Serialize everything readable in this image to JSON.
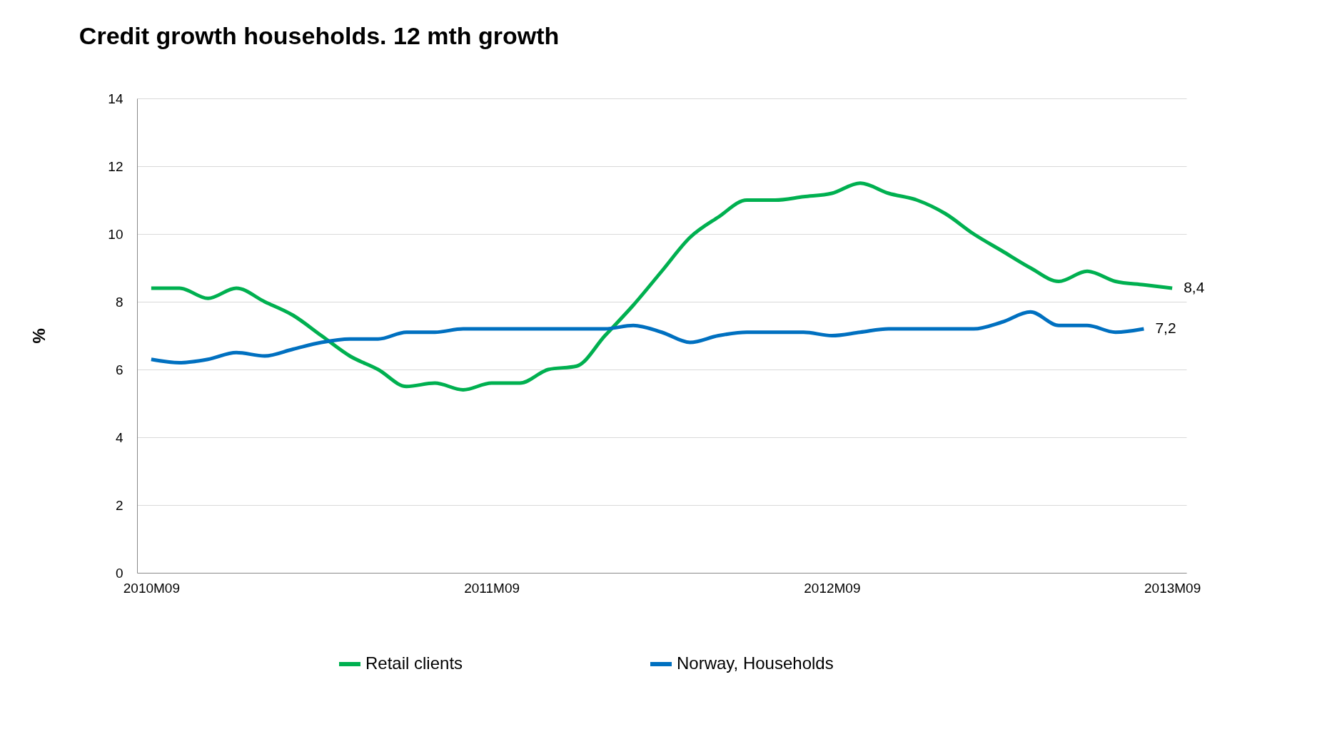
{
  "chart_data": {
    "type": "line",
    "title": "Credit growth households. 12 mth growth",
    "ylabel": "%",
    "categories": [
      "2010M09",
      null,
      null,
      null,
      null,
      null,
      null,
      null,
      null,
      null,
      null,
      null,
      "2011M09",
      null,
      null,
      null,
      null,
      null,
      null,
      null,
      null,
      null,
      null,
      null,
      "2012M09",
      null,
      null,
      null,
      null,
      null,
      null,
      null,
      null,
      null,
      null,
      null,
      "2013M09"
    ],
    "series": [
      {
        "name": "Retail clients",
        "color": "#00b050",
        "values": [
          8.4,
          8.4,
          8.1,
          8.4,
          8.0,
          7.6,
          7.0,
          6.4,
          6.0,
          5.5,
          5.6,
          5.4,
          5.6,
          5.6,
          6.0,
          6.1,
          7.0,
          7.9,
          8.9,
          9.9,
          10.5,
          11.0,
          11.0,
          11.1,
          11.2,
          11.5,
          11.2,
          11.0,
          10.6,
          10.0,
          9.5,
          9.0,
          8.6,
          8.9,
          8.6,
          8.5,
          8.4
        ],
        "value_labels": [
          null,
          null,
          null,
          null,
          null,
          null,
          null,
          null,
          null,
          null,
          null,
          null,
          null,
          null,
          null,
          null,
          null,
          null,
          null,
          null,
          null,
          null,
          null,
          null,
          null,
          null,
          null,
          null,
          null,
          null,
          null,
          null,
          null,
          null,
          null,
          null,
          "8,4"
        ]
      },
      {
        "name": "Norway, Households",
        "color": "#0070c0",
        "values": [
          6.3,
          6.2,
          6.3,
          6.5,
          6.4,
          6.6,
          6.8,
          6.9,
          6.9,
          7.1,
          7.1,
          7.2,
          7.2,
          7.2,
          7.2,
          7.2,
          7.2,
          7.3,
          7.1,
          6.8,
          7.0,
          7.1,
          7.1,
          7.1,
          7.0,
          7.1,
          7.2,
          7.2,
          7.2,
          7.2,
          7.4,
          7.7,
          7.3,
          7.3,
          7.1,
          7.2,
          null
        ],
        "value_labels": [
          null,
          null,
          null,
          null,
          null,
          null,
          null,
          null,
          null,
          null,
          null,
          null,
          null,
          null,
          null,
          null,
          null,
          null,
          null,
          null,
          null,
          null,
          null,
          null,
          null,
          null,
          null,
          null,
          null,
          null,
          null,
          null,
          null,
          null,
          null,
          "7,2",
          null
        ]
      }
    ],
    "ylim": [
      0,
      14
    ],
    "yticks": [
      0,
      2,
      4,
      6,
      8,
      10,
      12,
      14
    ],
    "grid": "y",
    "legend": "bottom",
    "marker": "none",
    "line_style": "solid"
  }
}
